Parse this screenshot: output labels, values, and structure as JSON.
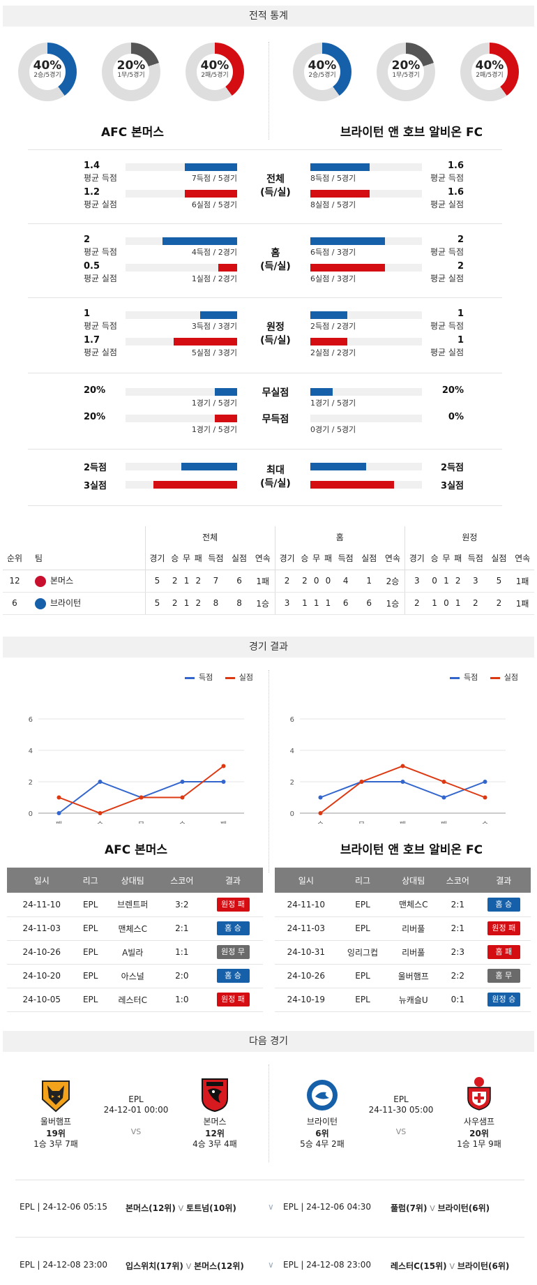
{
  "stats_section": {
    "title": "전적 통계",
    "left_team": "AFC 본머스",
    "right_team": "브라이턴 앤 호브 알비온 FC",
    "left_donuts": [
      {
        "pct": "40%",
        "sub": "2승/5경기",
        "value": 0.4,
        "color": "#1660aa"
      },
      {
        "pct": "20%",
        "sub": "1무/5경기",
        "value": 0.2,
        "color": "#555555"
      },
      {
        "pct": "40%",
        "sub": "2패/5경기",
        "value": 0.4,
        "color": "#d40d12"
      }
    ],
    "right_donuts": [
      {
        "pct": "40%",
        "sub": "2승/5경기",
        "value": 0.4,
        "color": "#1660aa"
      },
      {
        "pct": "20%",
        "sub": "1무/5경기",
        "value": 0.2,
        "color": "#555555"
      },
      {
        "pct": "40%",
        "sub": "2패/5경기",
        "value": 0.4,
        "color": "#d40d12"
      }
    ],
    "groups": [
      {
        "center": "전체",
        "center2": "(득/실)",
        "rows": [
          {
            "lval": "1.4",
            "lsub": "평균 득점",
            "lbar": "7득점 / 5경기",
            "lfrac": 0.47,
            "rval": "1.6",
            "rsub": "평균 득점",
            "rbar": "8득점 / 5경기",
            "rfrac": 0.53,
            "color": "blue"
          },
          {
            "lval": "1.2",
            "lsub": "평균 실점",
            "lbar": "6실점 / 5경기",
            "lfrac": 0.47,
            "rval": "1.6",
            "rsub": "평균 실점",
            "rbar": "8실점 / 5경기",
            "rfrac": 0.53,
            "color": "red"
          }
        ]
      },
      {
        "center": "홈",
        "center2": "(득/실)",
        "rows": [
          {
            "lval": "2",
            "lsub": "평균 득점",
            "lbar": "4득점 / 2경기",
            "lfrac": 0.67,
            "rval": "2",
            "rsub": "평균 득점",
            "rbar": "6득점 / 3경기",
            "rfrac": 0.67,
            "color": "blue"
          },
          {
            "lval": "0.5",
            "lsub": "평균 실점",
            "lbar": "1실점 / 2경기",
            "lfrac": 0.17,
            "rval": "2",
            "rsub": "평균 실점",
            "rbar": "6실점 / 3경기",
            "rfrac": 0.67,
            "color": "red"
          }
        ]
      },
      {
        "center": "원정",
        "center2": "(득/실)",
        "rows": [
          {
            "lval": "1",
            "lsub": "평균 득점",
            "lbar": "3득점 / 3경기",
            "lfrac": 0.33,
            "rval": "1",
            "rsub": "평균 득점",
            "rbar": "2득점 / 2경기",
            "rfrac": 0.33,
            "color": "blue"
          },
          {
            "lval": "1.7",
            "lsub": "평균 실점",
            "lbar": "5실점 / 3경기",
            "lfrac": 0.57,
            "rval": "1",
            "rsub": "평균 실점",
            "rbar": "2실점 / 2경기",
            "rfrac": 0.33,
            "color": "red"
          }
        ]
      }
    ],
    "cs_rows": [
      {
        "lval": "20%",
        "lbar": "1경기 / 5경기",
        "lfrac": 0.2,
        "center": "무실점",
        "rval": "20%",
        "rbar": "1경기 / 5경기",
        "rfrac": 0.2,
        "color": "blue"
      },
      {
        "lval": "20%",
        "lbar": "1경기 / 5경기",
        "lfrac": 0.2,
        "center": "무득점",
        "rval": "0%",
        "rbar": "0경기 / 5경기",
        "rfrac": 0.0,
        "color": "red"
      }
    ],
    "max_group": {
      "center": "최대",
      "center2": "(득/실)",
      "rows": [
        {
          "lval": "2득점",
          "lfrac": 0.5,
          "rval": "2득점",
          "rfrac": 0.5,
          "color": "blue"
        },
        {
          "lval": "3실점",
          "lfrac": 0.75,
          "rval": "3실점",
          "rfrac": 0.75,
          "color": "red"
        }
      ]
    }
  },
  "standings": {
    "group_headers": [
      "전체",
      "홈",
      "원정"
    ],
    "rank_label": "순위",
    "team_label": "팀",
    "cols": [
      "경기",
      "승",
      "무",
      "패",
      "득점",
      "실점",
      "연속"
    ],
    "rows": [
      {
        "rank": "12",
        "team": "본머스",
        "logo_color": "#c8102e",
        "all": [
          "5",
          "2",
          "1",
          "2",
          "7",
          "6",
          "1패"
        ],
        "home": [
          "2",
          "2",
          "0",
          "0",
          "4",
          "1",
          "2승"
        ],
        "away": [
          "3",
          "0",
          "1",
          "2",
          "3",
          "5",
          "1패"
        ]
      },
      {
        "rank": "6",
        "team": "브라이턴",
        "logo_color": "#1660aa",
        "all": [
          "5",
          "2",
          "1",
          "2",
          "8",
          "8",
          "1승"
        ],
        "home": [
          "3",
          "1",
          "1",
          "1",
          "6",
          "6",
          "1승"
        ],
        "away": [
          "2",
          "1",
          "0",
          "1",
          "2",
          "2",
          "1패"
        ]
      }
    ]
  },
  "results_section": {
    "title": "경기 결과",
    "legend_scored": "득점",
    "legend_conceded": "실점",
    "left_team": "AFC 본머스",
    "right_team": "브라이턴 앤 호브 알비온 FC",
    "table_headers": [
      "일시",
      "리그",
      "상대팀",
      "스코어",
      "결과"
    ],
    "left_rows": [
      {
        "date": "24-11-10",
        "league": "EPL",
        "opp": "브렌트퍼",
        "score": "3:2",
        "result": "원정 패",
        "rc": "red"
      },
      {
        "date": "24-11-03",
        "league": "EPL",
        "opp": "맨체스C",
        "score": "2:1",
        "result": "홈 승",
        "rc": "blue"
      },
      {
        "date": "24-10-26",
        "league": "EPL",
        "opp": "A빌라",
        "score": "1:1",
        "result": "원정 무",
        "rc": "gray"
      },
      {
        "date": "24-10-20",
        "league": "EPL",
        "opp": "아스널",
        "score": "2:0",
        "result": "홈 승",
        "rc": "blue"
      },
      {
        "date": "24-10-05",
        "league": "EPL",
        "opp": "레스터C",
        "score": "1:0",
        "result": "원정 패",
        "rc": "red"
      }
    ],
    "right_rows": [
      {
        "date": "24-11-10",
        "league": "EPL",
        "opp": "맨체스C",
        "score": "2:1",
        "result": "홈 승",
        "rc": "blue"
      },
      {
        "date": "24-11-03",
        "league": "EPL",
        "opp": "리버풀",
        "score": "2:1",
        "result": "원정 패",
        "rc": "red"
      },
      {
        "date": "24-10-31",
        "league": "잉리그컵",
        "opp": "리버풀",
        "score": "2:3",
        "result": "홈 패",
        "rc": "red"
      },
      {
        "date": "24-10-26",
        "league": "EPL",
        "opp": "울버햄프",
        "score": "2:2",
        "result": "홈 무",
        "rc": "gray"
      },
      {
        "date": "24-10-19",
        "league": "EPL",
        "opp": "뉴캐슬U",
        "score": "0:1",
        "result": "원정 승",
        "rc": "blue"
      }
    ]
  },
  "chart_data": [
    {
      "type": "line",
      "categories": [
        "패",
        "승",
        "무",
        "승",
        "패"
      ],
      "series": [
        {
          "name": "득점",
          "color": "#3366cc",
          "values": [
            0,
            2,
            1,
            2,
            2
          ]
        },
        {
          "name": "실점",
          "color": "#dc3912",
          "values": [
            1,
            0,
            1,
            1,
            3
          ]
        }
      ],
      "yticks": [
        "0",
        "2",
        "4",
        "6"
      ],
      "ylim": [
        0,
        6
      ]
    },
    {
      "type": "line",
      "categories": [
        "승",
        "무",
        "패",
        "패",
        "승"
      ],
      "series": [
        {
          "name": "득점",
          "color": "#3366cc",
          "values": [
            1,
            2,
            2,
            1,
            2
          ]
        },
        {
          "name": "실점",
          "color": "#dc3912",
          "values": [
            0,
            2,
            3,
            2,
            1
          ]
        }
      ],
      "yticks": [
        "0",
        "2",
        "4",
        "6"
      ],
      "ylim": [
        0,
        6
      ]
    }
  ],
  "next_section": {
    "title": "다음 경기",
    "left_match": {
      "league": "EPL",
      "datetime": "24-12-01 00:00",
      "vs": "VS",
      "home": {
        "name": "울버햄프",
        "rank": "19위",
        "record": "1승 3무 7패"
      },
      "away": {
        "name": "본머스",
        "rank": "12위",
        "record": "4승 3무 4패"
      }
    },
    "right_match": {
      "league": "EPL",
      "datetime": "24-11-30 05:00",
      "vs": "VS",
      "home": {
        "name": "브라이턴",
        "rank": "6위",
        "record": "5승 4무 2패"
      },
      "away": {
        "name": "사우샘프",
        "rank": "20위",
        "record": "1승 1무 9패"
      }
    },
    "schedule": [
      {
        "l_meta": "EPL | 24-12-06 05:15",
        "l_home": "본머스(12위)",
        "l_vs": "V",
        "l_away": "토트넘(10위)",
        "r_meta": "EPL | 24-12-06 04:30",
        "r_home": "풀럼(7위)",
        "r_vs": "V",
        "r_away": "브라이턴(6위)"
      },
      {
        "l_meta": "EPL | 24-12-08 23:00",
        "l_home": "입스위치(17위)",
        "l_vs": "V",
        "l_away": "본머스(12위)",
        "r_meta": "EPL | 24-12-08 23:00",
        "r_home": "레스터C(15위)",
        "r_vs": "V",
        "r_away": "브라이턴(6위)"
      }
    ]
  }
}
